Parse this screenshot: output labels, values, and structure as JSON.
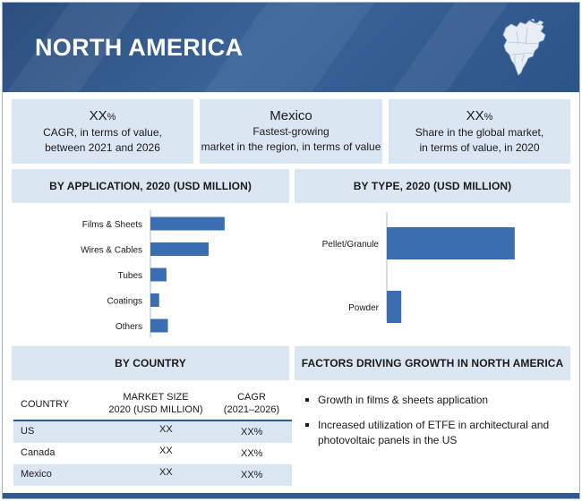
{
  "header": {
    "title": "NORTH AMERICA"
  },
  "kpis": [
    {
      "value": "XX",
      "unit": "%",
      "lines": [
        "CAGR, in terms of value,",
        "between 2021 and 2026"
      ]
    },
    {
      "value": "Mexico",
      "unit": "",
      "lines": [
        "Fastest-growing",
        "market in the region, in terms of value"
      ]
    },
    {
      "value": "XX",
      "unit": "%",
      "lines": [
        "Share in the global market,",
        "in terms of value, in 2020"
      ]
    }
  ],
  "sections": {
    "by_application": "BY APPLICATION, 2020 (USD MILLION)",
    "by_type": "BY TYPE, 2020 (USD MILLION)",
    "by_country": "BY COUNTRY",
    "factors": "FACTORS DRIVING GROWTH IN NORTH AMERICA"
  },
  "colors": {
    "header": "#2f5a8d",
    "panel": "#dbe6f3",
    "bar": "#3a6eb0"
  },
  "icons": {
    "region_map": "north-america-map-icon"
  },
  "chart_data": [
    {
      "type": "bar",
      "orientation": "horizontal",
      "title": "BY APPLICATION, 2020 (USD MILLION)",
      "categories": [
        "Films & Sheets",
        "Wires & Cables",
        "Tubes",
        "Coatings",
        "Others"
      ],
      "values": [
        102,
        80,
        22,
        12,
        24
      ],
      "xlim": [
        0,
        160
      ],
      "value_labels_shown": false
    },
    {
      "type": "bar",
      "orientation": "horizontal",
      "title": "BY TYPE, 2020 (USD MILLION)",
      "categories": [
        "Pellet/Granule",
        "Powder"
      ],
      "values": [
        150,
        17
      ],
      "xlim": [
        0,
        210
      ],
      "value_labels_shown": false
    }
  ],
  "country_table": {
    "headers": {
      "country": "COUNTRY",
      "market_size_1": "MARKET SIZE",
      "market_size_2": "2020 (USD MILLION)",
      "cagr_1": "CAGR",
      "cagr_2": "(2021–2026)"
    },
    "rows": [
      {
        "country": "US",
        "market_size": "XX",
        "cagr": "XX%"
      },
      {
        "country": "Canada",
        "market_size": "XX",
        "cagr": "XX%"
      },
      {
        "country": "Mexico",
        "market_size": "XX",
        "cagr": "XX%"
      }
    ]
  },
  "factors": [
    {
      "lines": [
        "Growth in films & sheets application"
      ]
    },
    {
      "lines": [
        "Increased utilization of ETFE in architectural and",
        "photovoltaic panels in the US"
      ]
    }
  ]
}
